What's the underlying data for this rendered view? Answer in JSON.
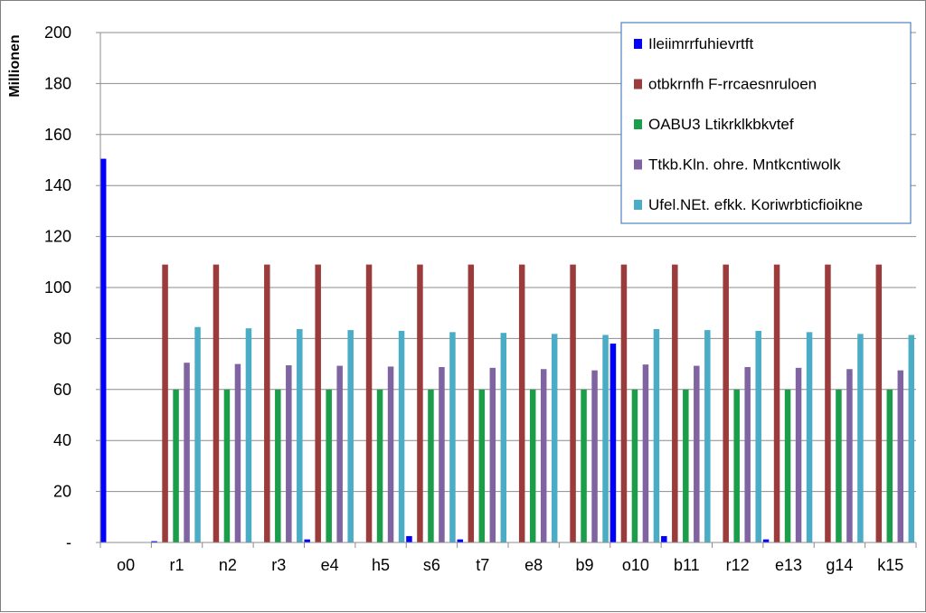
{
  "chart_data": {
    "type": "bar",
    "title": "",
    "xlabel": "",
    "ylabel": "Millionen",
    "ylim": [
      0,
      200
    ],
    "yticks": [
      0,
      20,
      40,
      60,
      80,
      100,
      120,
      140,
      160,
      180,
      200
    ],
    "ytick_labels": [
      "-",
      "20",
      "40",
      "60",
      "80",
      "100",
      "120",
      "140",
      "160",
      "180",
      "200"
    ],
    "grid": true,
    "legend_position": "top-right",
    "categories": [
      "o0",
      "r1",
      "n2",
      "r3",
      "e4",
      "h5",
      "s6",
      "t7",
      "e8",
      "b9",
      "o10",
      "b11",
      "r12",
      "e13",
      "g14",
      "k15"
    ],
    "series": [
      {
        "name": "Ileiimrrfuhievrtft",
        "color": "#0000ff",
        "values": [
          150.5,
          0.5,
          0,
          0,
          1.2,
          0,
          2.5,
          1.2,
          0,
          0,
          78,
          2.5,
          0,
          1.2,
          0,
          0
        ]
      },
      {
        "name": "otbkrnfh F-rrcaesnruloen",
        "color": "#9b3b3b",
        "values": [
          0,
          109,
          109,
          109,
          109,
          109,
          109,
          109,
          109,
          109,
          109,
          109,
          109,
          109,
          109,
          109
        ]
      },
      {
        "name": "OABU3 Ltikrklkbkvtef",
        "color": "#1a9e4a",
        "values": [
          0,
          60,
          60,
          60,
          60,
          60,
          60,
          60,
          60,
          60,
          60,
          60,
          60,
          60,
          60,
          60
        ]
      },
      {
        "name": "Ttkb.Kln. ohre. Mntkcntiwolk",
        "color": "#8064a2",
        "values": [
          0,
          70.5,
          70,
          69.5,
          69.3,
          69,
          68.8,
          68.5,
          68,
          67.5,
          69.8,
          69.3,
          68.8,
          68.5,
          68,
          67.5
        ]
      },
      {
        "name": "Ufel.NEt. efkk. Koriwrbticfioikne",
        "color": "#4bacc6",
        "values": [
          0,
          84.5,
          84,
          83.7,
          83.3,
          83,
          82.5,
          82.2,
          81.8,
          81.4,
          83.7,
          83.3,
          83,
          82.5,
          81.8,
          81.4
        ]
      }
    ]
  }
}
